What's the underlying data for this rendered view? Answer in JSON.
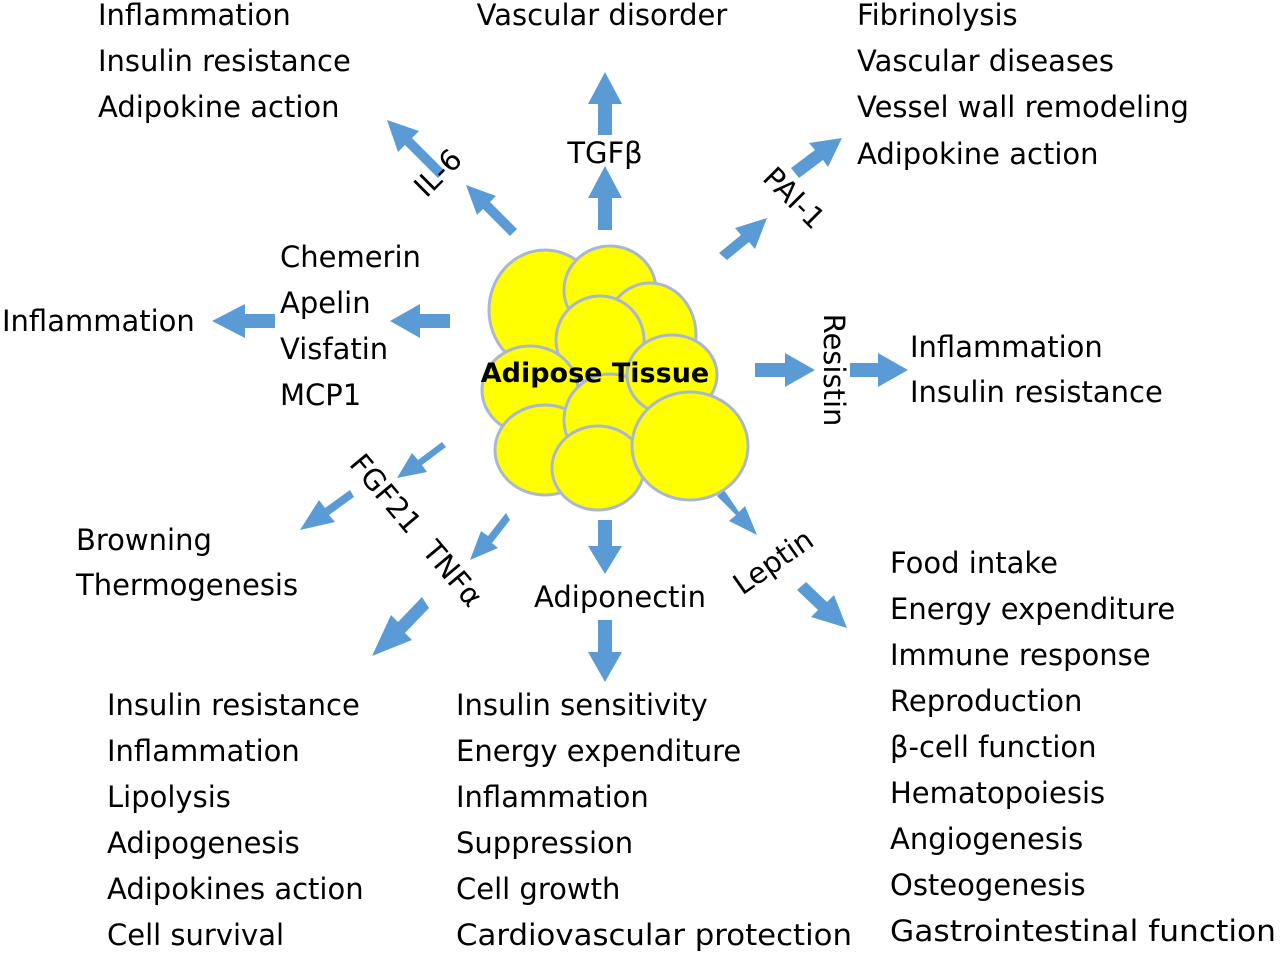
{
  "colors": {
    "arrow": "#5b9bd5",
    "cell_fill": "#ffff00",
    "cell_stroke": "#a9b8cf",
    "text": "#000000"
  },
  "center": {
    "label": "Adipose Tissue"
  },
  "factors": {
    "il6": "IL-6",
    "tgfb": "TGFβ",
    "pai1": "PAI-1",
    "resistin": "Resistin",
    "leptin": "Leptin",
    "adiponectin": "Adiponectin",
    "tnfa": "TNFα",
    "fgf21": "FGF21",
    "group_left": [
      "Chemerin",
      "Apelin",
      "Visfatin",
      "MCP1"
    ]
  },
  "effects": {
    "il6": [
      "Inflammation",
      "Insulin resistance",
      "Adipokine action"
    ],
    "tgfb": [
      "Vascular disorder"
    ],
    "pai1": [
      "Fibrinolysis",
      "Vascular diseases",
      "Vessel wall remodeling",
      "Adipokine action"
    ],
    "resistin": [
      "Inflammation",
      "Insulin resistance"
    ],
    "group_left": [
      "Inflammation"
    ],
    "fgf21": [
      "Browning",
      "Thermogenesis"
    ],
    "tnfa": [
      "Insulin resistance",
      "Inflammation",
      "Lipolysis",
      "Adipogenesis",
      "Adipokines action",
      "Cell survival"
    ],
    "adiponectin": [
      "Insulin sensitivity",
      "Energy expenditure",
      "Inflammation",
      "Suppression",
      "Cell growth",
      "Cardiovascular protection"
    ],
    "leptin": [
      "Food intake",
      "Energy expenditure",
      "Immune response",
      "Reproduction",
      "β-cell function",
      "Hematopoiesis",
      "Angiogenesis",
      "Osteogenesis",
      "Gastrointestinal function"
    ]
  }
}
